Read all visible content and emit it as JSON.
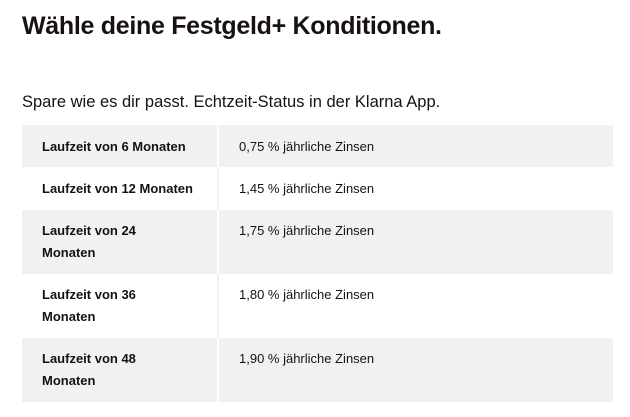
{
  "header": {
    "title": "Wähle deine Festgeld+ Konditionen.",
    "subtitle": "Spare wie es dir passt. Echtzeit-Status in der Klarna App."
  },
  "rates_table": {
    "rows": [
      {
        "term": "Laufzeit von 6 Monaten",
        "rate": "0,75 % jährliche Zinsen"
      },
      {
        "term": "Laufzeit von 12 Monaten",
        "rate": "1,45 % jährliche Zinsen"
      },
      {
        "term": "Laufzeit von 24 Monaten",
        "rate": "1,75 % jährliche Zinsen"
      },
      {
        "term": "Laufzeit von 36 Monaten",
        "rate": "1,80 % jährliche Zinsen"
      },
      {
        "term": "Laufzeit von 48 Monaten",
        "rate": "1,90 % jährliche Zinsen"
      }
    ]
  },
  "colors": {
    "text": "#17120f",
    "row_shade": "#f1f1f1",
    "background": "#ffffff"
  }
}
